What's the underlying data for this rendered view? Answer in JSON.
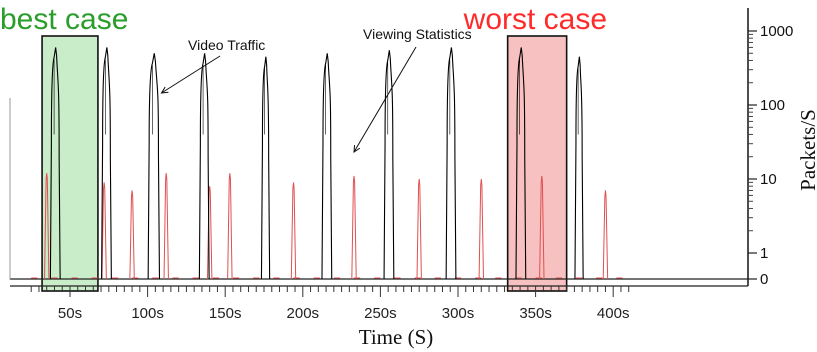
{
  "chart_data": {
    "type": "line",
    "xlabel": "Time (S)",
    "ylabel": "Packets/S",
    "y_scale": "log",
    "xlim": [
      24,
      410
    ],
    "x_ticks": [
      "50s",
      "100s",
      "150s",
      "200s",
      "250s",
      "300s",
      "350s",
      "400s"
    ],
    "y_ticks": [
      "1000",
      "100",
      "10",
      "1",
      "0"
    ],
    "series": [
      {
        "key": "video",
        "color": "#000000",
        "bursts": [
          {
            "start": 38,
            "end": 43,
            "peak": 600
          },
          {
            "start": 71,
            "end": 76,
            "peak": 600
          },
          {
            "start": 101,
            "end": 107,
            "peak": 500
          },
          {
            "start": 134,
            "end": 139,
            "peak": 500
          },
          {
            "start": 174,
            "end": 178,
            "peak": 450
          },
          {
            "start": 213,
            "end": 218,
            "peak": 500
          },
          {
            "start": 253,
            "end": 258,
            "peak": 550
          },
          {
            "start": 293,
            "end": 298,
            "peak": 600
          },
          {
            "start": 338,
            "end": 343,
            "peak": 600
          },
          {
            "start": 376,
            "end": 380,
            "peak": 450
          }
        ]
      },
      {
        "key": "stats",
        "color": "#e05050",
        "spikes": [
          {
            "x": 35,
            "y": 12
          },
          {
            "x": 72,
            "y": 9
          },
          {
            "x": 90,
            "y": 7
          },
          {
            "x": 112,
            "y": 12
          },
          {
            "x": 140,
            "y": 8
          },
          {
            "x": 153,
            "y": 12
          },
          {
            "x": 194,
            "y": 9
          },
          {
            "x": 233,
            "y": 11
          },
          {
            "x": 275,
            "y": 10
          },
          {
            "x": 315,
            "y": 10
          },
          {
            "x": 354,
            "y": 11
          },
          {
            "x": 395,
            "y": 7
          }
        ]
      }
    ],
    "highlights": [
      {
        "key": "best",
        "label": "best case",
        "x_start": 32,
        "x_end": 68,
        "fill": "#c9ecc9",
        "label_color": "#2a9d2a"
      },
      {
        "key": "worst",
        "label": "worst case",
        "x_start": 332,
        "x_end": 370,
        "fill": "#f8c1c1",
        "label_color": "#ff2a2a"
      }
    ],
    "annotations": [
      {
        "key": "video",
        "text": "Video Traffic",
        "points_to_x": 107,
        "points_to_y": 450
      },
      {
        "key": "stats",
        "text": "Viewing Statistics",
        "points_to_x": 233,
        "points_to_y": 18
      }
    ]
  }
}
